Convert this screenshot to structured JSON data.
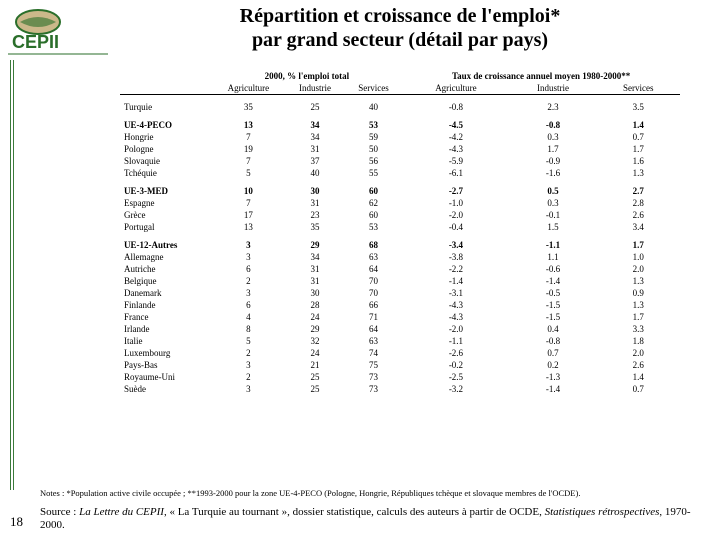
{
  "title_line1": "Répartition et croissance de l'emploi*",
  "title_line2": "par grand secteur (détail par pays)",
  "page_number": "18",
  "logo_text": "CEPII",
  "notes": "Notes : *Population active civile occupée ; **1993-2000 pour la zone UE-4-PECO (Pologne, Hongrie, Républiques tchèque et slovaque membres de l'OCDE).",
  "source_prefix": "Source : ",
  "source_italic1": "La Lettre du CEPII",
  "source_mid": ", « La Turquie au tournant », dossier statistique, calculs des auteurs à partir de OCDE, ",
  "source_italic2": "Statistiques rétrospectives",
  "source_end": ", 1970-2000.",
  "headers": {
    "super_left": "2000, % l'emploi total",
    "super_right": "Taux de croissance annuel moyen 1980-2000**",
    "agr": "Agriculture",
    "ind": "Industrie",
    "ser": "Services"
  },
  "rows": [
    {
      "g": 0,
      "label": "Turquie",
      "v": [
        "35",
        "25",
        "40",
        "-0.8",
        "2.3",
        "3.5"
      ]
    },
    {
      "g": 1,
      "label": "UE-4-PECO",
      "v": [
        "13",
        "34",
        "53",
        "-4.5",
        "-0.8",
        "1.4"
      ]
    },
    {
      "g": 0,
      "label": "Hongrie",
      "v": [
        "7",
        "34",
        "59",
        "-4.2",
        "0.3",
        "0.7"
      ]
    },
    {
      "g": 0,
      "label": "Pologne",
      "v": [
        "19",
        "31",
        "50",
        "-4.3",
        "1.7",
        "1.7"
      ]
    },
    {
      "g": 0,
      "label": "Slovaquie",
      "v": [
        "7",
        "37",
        "56",
        "-5.9",
        "-0.9",
        "1.6"
      ]
    },
    {
      "g": 0,
      "label": "Tchéquie",
      "v": [
        "5",
        "40",
        "55",
        "-6.1",
        "-1.6",
        "1.3"
      ]
    },
    {
      "g": 1,
      "label": "UE-3-MED",
      "v": [
        "10",
        "30",
        "60",
        "-2.7",
        "0.5",
        "2.7"
      ]
    },
    {
      "g": 0,
      "label": "Espagne",
      "v": [
        "7",
        "31",
        "62",
        "-1.0",
        "0.3",
        "2.8"
      ]
    },
    {
      "g": 0,
      "label": "Grèce",
      "v": [
        "17",
        "23",
        "60",
        "-2.0",
        "-0.1",
        "2.6"
      ]
    },
    {
      "g": 0,
      "label": "Portugal",
      "v": [
        "13",
        "35",
        "53",
        "-0.4",
        "1.5",
        "3.4"
      ]
    },
    {
      "g": 1,
      "label": "UE-12-Autres",
      "v": [
        "3",
        "29",
        "68",
        "-3.4",
        "-1.1",
        "1.7"
      ]
    },
    {
      "g": 0,
      "label": "Allemagne",
      "v": [
        "3",
        "34",
        "63",
        "-3.8",
        "1.1",
        "1.0"
      ]
    },
    {
      "g": 0,
      "label": "Autriche",
      "v": [
        "6",
        "31",
        "64",
        "-2.2",
        "-0.6",
        "2.0"
      ]
    },
    {
      "g": 0,
      "label": "Belgique",
      "v": [
        "2",
        "31",
        "70",
        "-1.4",
        "-1.4",
        "1.3"
      ]
    },
    {
      "g": 0,
      "label": "Danemark",
      "v": [
        "3",
        "30",
        "70",
        "-3.1",
        "-0.5",
        "0.9"
      ]
    },
    {
      "g": 0,
      "label": "Finlande",
      "v": [
        "6",
        "28",
        "66",
        "-4.3",
        "-1.5",
        "1.3"
      ]
    },
    {
      "g": 0,
      "label": "France",
      "v": [
        "4",
        "24",
        "71",
        "-4.3",
        "-1.5",
        "1.7"
      ]
    },
    {
      "g": 0,
      "label": "Irlande",
      "v": [
        "8",
        "29",
        "64",
        "-2.0",
        "0.4",
        "3.3"
      ]
    },
    {
      "g": 0,
      "label": "Italie",
      "v": [
        "5",
        "32",
        "63",
        "-1.1",
        "-0.8",
        "1.8"
      ]
    },
    {
      "g": 0,
      "label": "Luxembourg",
      "v": [
        "2",
        "24",
        "74",
        "-2.6",
        "0.7",
        "2.0"
      ]
    },
    {
      "g": 0,
      "label": "Pays-Bas",
      "v": [
        "3",
        "21",
        "75",
        "-0.2",
        "0.2",
        "2.6"
      ]
    },
    {
      "g": 0,
      "label": "Royaume-Uni",
      "v": [
        "2",
        "25",
        "73",
        "-2.5",
        "-1.3",
        "1.4"
      ]
    },
    {
      "g": 0,
      "label": "Suède",
      "v": [
        "3",
        "25",
        "73",
        "-3.2",
        "-1.4",
        "0.7"
      ]
    }
  ],
  "style": {
    "bg": "#ffffff",
    "rule_color": "#3b7a3b",
    "font_family": "Times New Roman",
    "title_fontsize_pt": 20,
    "table_fontsize_pt": 9,
    "notes_fontsize_pt": 8.5,
    "source_fontsize_pt": 11,
    "logo_green": "#2a6e2a",
    "logo_tan": "#cbb88a"
  }
}
